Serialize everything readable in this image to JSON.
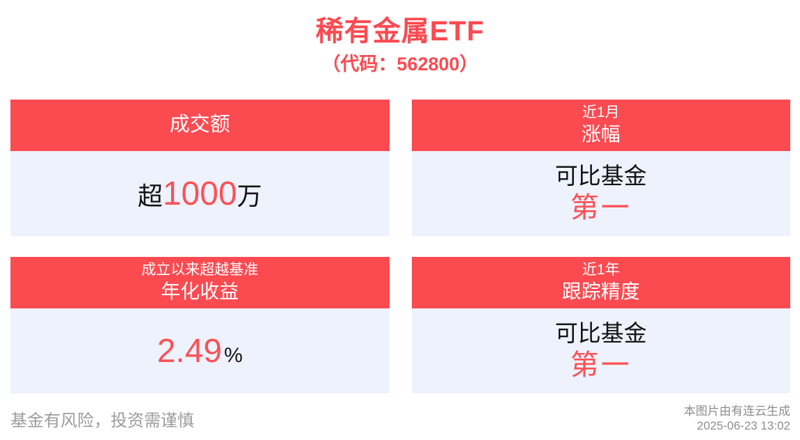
{
  "page": {
    "title": "稀有金属ETF",
    "subtitle": "（代码：562800）",
    "footer": {
      "disclaimer": "基金有风险，投资需谨慎",
      "generator": "本图片由有连云生成",
      "timestamp": "2025-06-23 13:02"
    }
  },
  "colors": {
    "accent_red": "#fc4a51",
    "value_red": "#fa5258",
    "card_body_bg": "#edf2fd",
    "text_dark": "#141414",
    "header_text": "#ffffff",
    "muted_gray": "#9c9c9c",
    "gen_gray": "#8d8d8d"
  },
  "cards": [
    {
      "header_main": "成交额",
      "value_prefix": "超",
      "value_highlight": "1000",
      "value_suffix": "万"
    },
    {
      "header_small": "近1月",
      "header_main": "涨幅",
      "value_line1": "可比基金",
      "value_line2": "第一"
    },
    {
      "header_small": "成立以来超越基准",
      "header_main": "年化收益",
      "value_highlight": "2.49",
      "value_suffix": "%"
    },
    {
      "header_small": "近1年",
      "header_main": "跟踪精度",
      "value_line1": "可比基金",
      "value_line2": "第一"
    }
  ]
}
